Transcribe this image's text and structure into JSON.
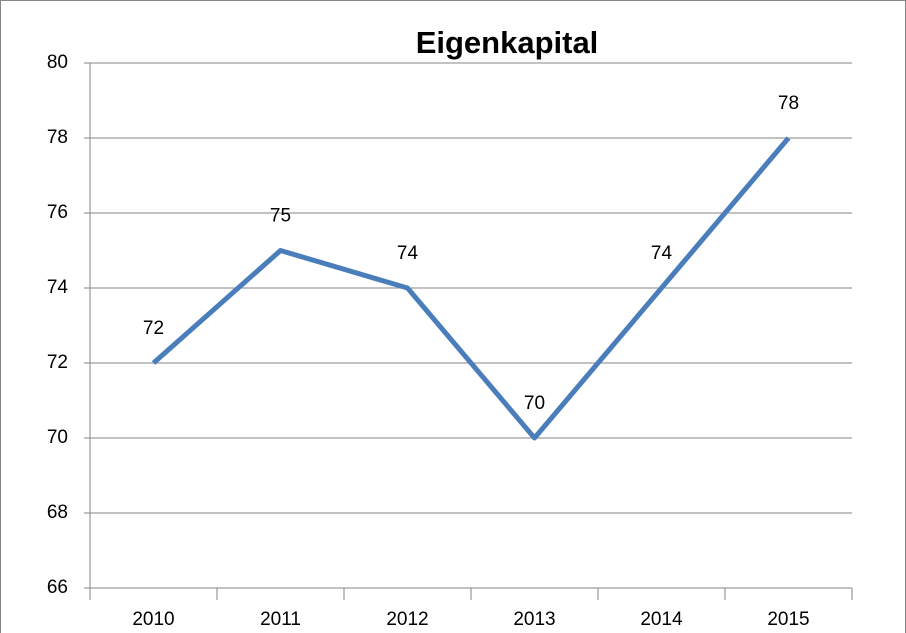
{
  "chart_data": {
    "type": "line",
    "title": "Eigenkapital",
    "categories": [
      "2010",
      "2011",
      "2012",
      "2013",
      "2014",
      "2015"
    ],
    "values": [
      72,
      75,
      74,
      70,
      74,
      78
    ],
    "color": "#4a7ebb",
    "ylim": [
      66,
      80
    ],
    "yticks": [
      66,
      68,
      70,
      72,
      74,
      76,
      78,
      80
    ],
    "grid": true
  }
}
